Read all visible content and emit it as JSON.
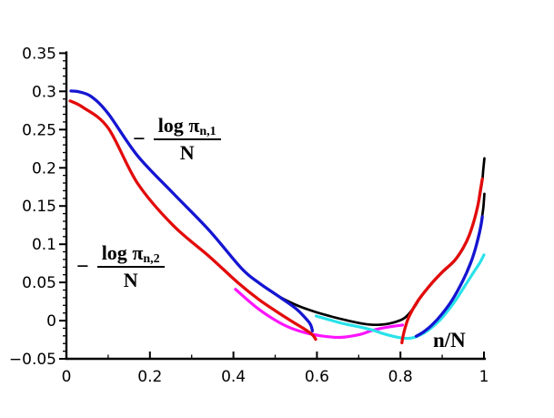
{
  "figure": {
    "background_color": "#ffffff",
    "axis_color": "#000000",
    "annotations": {
      "label_pi1": {
        "minus": "−",
        "log": "log ",
        "pi": "π",
        "subscript": "n,1",
        "denominator": "N"
      },
      "label_pi2": {
        "minus": "−",
        "log": "log ",
        "pi": "π",
        "subscript": "n,2",
        "denominator": "N"
      },
      "x_label": "n/N"
    }
  },
  "chart_data": {
    "type": "line",
    "title": "",
    "xlabel": "n/N",
    "ylabel": "",
    "xlim": [
      0,
      1
    ],
    "ylim": [
      -0.05,
      0.35
    ],
    "grid": false,
    "legend": "none",
    "x_axis": {
      "tick_labels": [
        "0",
        "0.2",
        "0.4",
        "0.6",
        "0.8",
        "1"
      ],
      "tick_values": [
        0,
        0.2,
        0.4,
        0.6,
        0.8,
        1
      ],
      "minor_step": 0.1
    },
    "y_axis": {
      "tick_labels": [
        "0.35",
        "0.3",
        "0.25",
        "0.2",
        "0.15",
        "0.1",
        "0.05",
        "0",
        "−0.05"
      ],
      "tick_values": [
        0.35,
        0.3,
        0.25,
        0.2,
        0.15,
        0.1,
        0.05,
        0,
        -0.05
      ],
      "minor_step": 0.01
    },
    "series": [
      {
        "name": "magenta-middle-branch",
        "color": "#ff14ff",
        "width": 3.2,
        "points": [
          [
            0.405,
            0.041
          ],
          [
            0.45,
            0.0195
          ],
          [
            0.49,
            0.004
          ],
          [
            0.53,
            -0.008
          ],
          [
            0.57,
            -0.0155
          ],
          [
            0.61,
            -0.02
          ],
          [
            0.655,
            -0.022
          ],
          [
            0.7,
            -0.0185
          ],
          [
            0.735,
            -0.0125
          ],
          [
            0.77,
            -0.0085
          ],
          [
            0.805,
            -0.0058
          ]
        ]
      },
      {
        "name": "cyan-middle-branch",
        "color": "#29e2ea",
        "width": 3.2,
        "points": [
          [
            0.598,
            0.006
          ],
          [
            0.63,
            0.001
          ],
          [
            0.66,
            -0.0035
          ],
          [
            0.7,
            -0.008
          ],
          [
            0.73,
            -0.012
          ],
          [
            0.765,
            -0.018
          ],
          [
            0.8,
            -0.0225
          ],
          [
            0.825,
            -0.023
          ],
          [
            0.85,
            -0.018
          ],
          [
            0.875,
            -0.009
          ],
          [
            0.9,
            0.004
          ],
          [
            0.93,
            0.025
          ],
          [
            0.955,
            0.046
          ],
          [
            0.975,
            0.063
          ],
          [
            0.99,
            0.0755
          ],
          [
            1.0,
            0.086
          ]
        ]
      },
      {
        "name": "black-limit-curve",
        "color": "#000000",
        "width": 2.7,
        "points": [
          [
            0.46,
            0.0495
          ],
          [
            0.505,
            0.033
          ],
          [
            0.55,
            0.0205
          ],
          [
            0.59,
            0.0125
          ],
          [
            0.63,
            0.006
          ],
          [
            0.67,
            0.0005
          ],
          [
            0.71,
            -0.004
          ],
          [
            0.745,
            -0.0055
          ],
          [
            0.78,
            -0.003
          ],
          [
            0.81,
            0.0035
          ],
          [
            0.833,
            0.0175
          ],
          [
            0.845,
            0.028
          ],
          [
            0.86,
            0.0385
          ],
          [
            0.88,
            0.0515
          ],
          [
            0.9,
            0.063
          ],
          [
            0.93,
            0.0785
          ],
          [
            0.95,
            0.0945
          ],
          [
            0.965,
            0.1115
          ],
          [
            0.977,
            0.1315
          ],
          [
            0.986,
            0.152
          ],
          [
            0.9925,
            0.1715
          ],
          [
            0.9965,
            0.1855
          ],
          [
            0.998,
            0.196
          ],
          [
            1.001,
            0.2125
          ]
        ]
      },
      {
        "name": "black-cap-upper-branch",
        "color": "#000000",
        "width": 2.7,
        "points": [
          [
            0.96,
            0.0655
          ],
          [
            0.972,
            0.0815
          ],
          [
            0.982,
            0.0985
          ],
          [
            0.99,
            0.116
          ],
          [
            0.9955,
            0.1355
          ],
          [
            0.999,
            0.15
          ],
          [
            1.001,
            0.166
          ]
        ]
      },
      {
        "name": "neg-log-pi-n1-left-branch",
        "color": "#1515d2",
        "width": 3.3,
        "points": [
          [
            0.011,
            0.3005
          ],
          [
            0.03,
            0.2995
          ],
          [
            0.06,
            0.293
          ],
          [
            0.1,
            0.271
          ],
          [
            0.17,
            0.216
          ],
          [
            0.255,
            0.167
          ],
          [
            0.342,
            0.118
          ],
          [
            0.42,
            0.068
          ],
          [
            0.462,
            0.049
          ],
          [
            0.505,
            0.033
          ],
          [
            0.549,
            0.016
          ],
          [
            0.578,
            0.0
          ],
          [
            0.586,
            -0.007
          ],
          [
            0.589,
            -0.0135
          ]
        ]
      },
      {
        "name": "neg-log-pi-n2-left-branch",
        "color": "#e30b0b",
        "width": 3.3,
        "points": [
          [
            0.009,
            0.2875
          ],
          [
            0.04,
            0.279
          ],
          [
            0.1,
            0.252
          ],
          [
            0.17,
            0.18
          ],
          [
            0.255,
            0.125
          ],
          [
            0.342,
            0.084
          ],
          [
            0.41,
            0.05
          ],
          [
            0.46,
            0.028
          ],
          [
            0.5,
            0.013
          ],
          [
            0.54,
            -0.001
          ],
          [
            0.57,
            -0.011
          ],
          [
            0.59,
            -0.019
          ],
          [
            0.597,
            -0.0245
          ]
        ]
      },
      {
        "name": "blue-right-branch",
        "color": "#1515d2",
        "width": 3.3,
        "points": [
          [
            0.838,
            -0.0205
          ],
          [
            0.855,
            -0.015
          ],
          [
            0.875,
            -0.006
          ],
          [
            0.9,
            0.009
          ],
          [
            0.925,
            0.028
          ],
          [
            0.95,
            0.053
          ],
          [
            0.968,
            0.075
          ],
          [
            0.98,
            0.095
          ],
          [
            0.989,
            0.115
          ],
          [
            0.994,
            0.128
          ],
          [
            0.996,
            0.136
          ]
        ]
      },
      {
        "name": "red-right-branch",
        "color": "#e30b0b",
        "width": 3.3,
        "points": [
          [
            0.8035,
            -0.029
          ],
          [
            0.805,
            -0.0235
          ],
          [
            0.808,
            -0.016
          ],
          [
            0.812,
            -0.008
          ],
          [
            0.817,
            0.0005
          ],
          [
            0.824,
            0.009
          ],
          [
            0.833,
            0.018
          ],
          [
            0.845,
            0.0285
          ],
          [
            0.86,
            0.039
          ],
          [
            0.88,
            0.052
          ],
          [
            0.9,
            0.0635
          ],
          [
            0.93,
            0.079
          ],
          [
            0.95,
            0.095
          ],
          [
            0.965,
            0.112
          ],
          [
            0.977,
            0.132
          ],
          [
            0.986,
            0.1525
          ],
          [
            0.992,
            0.172
          ],
          [
            0.996,
            0.1855
          ]
        ]
      }
    ]
  }
}
